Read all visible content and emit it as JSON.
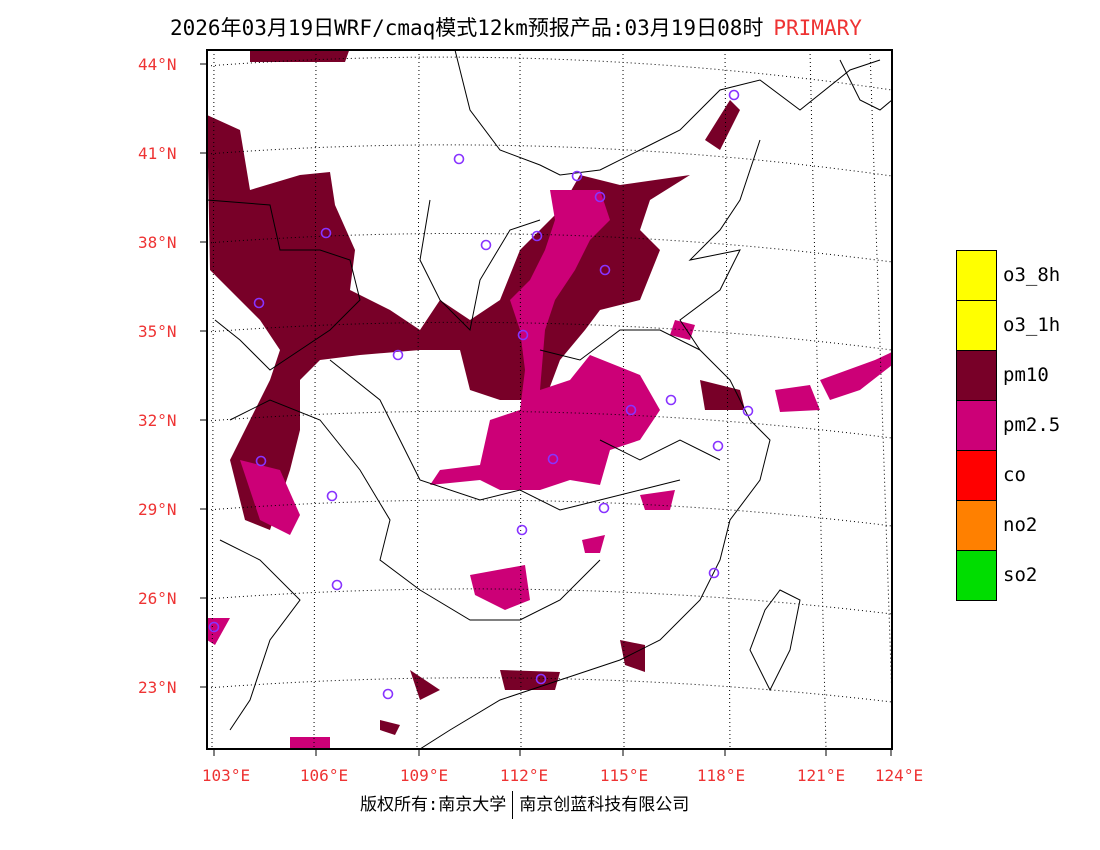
{
  "title": {
    "main": "2026年03月19日WRF/cmaq模式12km预报产品:03月19日08时",
    "tag": "PRIMARY"
  },
  "lat_ticks": [
    "44°N",
    "41°N",
    "38°N",
    "35°N",
    "32°N",
    "29°N",
    "26°N",
    "23°N"
  ],
  "lon_ticks": [
    "103°E",
    "106°E",
    "109°E",
    "112°E",
    "115°E",
    "118°E",
    "121°E",
    "124°E"
  ],
  "legend": [
    {
      "label": "o3_8h",
      "color": "#ffff00"
    },
    {
      "label": "o3_1h",
      "color": "#ffff00"
    },
    {
      "label": "pm10",
      "color": "#780028"
    },
    {
      "label": "pm2.5",
      "color": "#cc0077"
    },
    {
      "label": "co",
      "color": "#ff0000"
    },
    {
      "label": "no2",
      "color": "#ff8000"
    },
    {
      "label": "so2",
      "color": "#00dd00"
    }
  ],
  "footer": {
    "left": "版权所有:南京大学",
    "right": "南京创蓝科技有限公司"
  },
  "colors": {
    "pm10": "#780028",
    "pm25": "#cc0077",
    "station": "#8833ff",
    "tick": "#ee3333"
  }
}
